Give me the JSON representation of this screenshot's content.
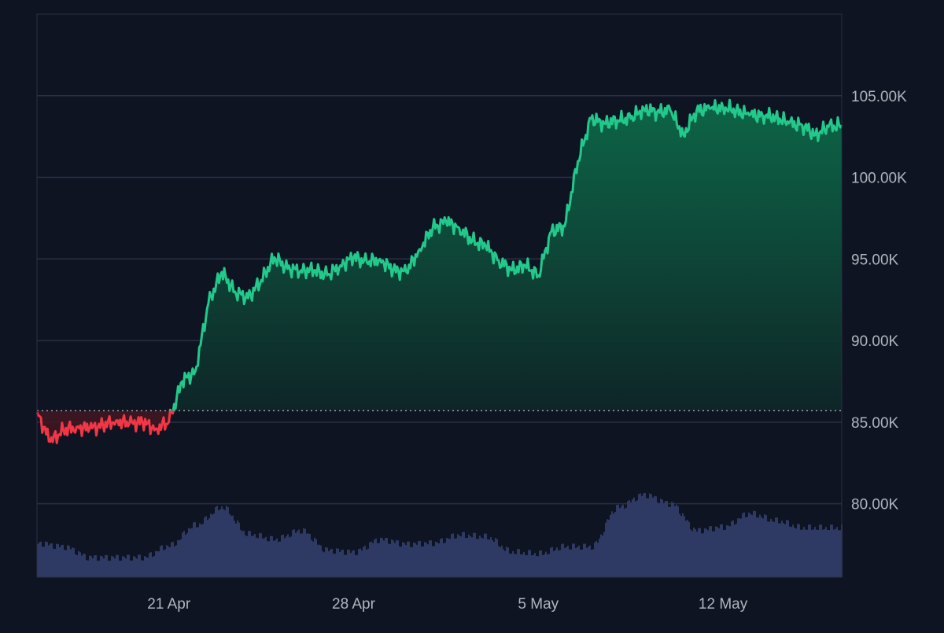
{
  "chart_data": {
    "type": "area",
    "title": "",
    "xlabel": "",
    "ylabel": "",
    "baseline": 85700,
    "ylim": [
      75500,
      110000
    ],
    "yticks": [
      80000,
      85000,
      90000,
      95000,
      100000,
      105000
    ],
    "ytick_labels": [
      "80.00K",
      "85.00K",
      "90.00K",
      "95.00K",
      "100.00K",
      "105.00K"
    ],
    "xlim": [
      "2025-04-16",
      "2025-05-16 12:00"
    ],
    "xticks": [
      "2025-04-21",
      "2025-04-28",
      "2025-05-05",
      "2025-05-12"
    ],
    "xtick_labels": [
      "21 Apr",
      "28 Apr",
      "5 May",
      "12 May"
    ],
    "grid": true,
    "colors": {
      "up": "#22c98a",
      "down": "#f23645",
      "volume": "#2e3a63",
      "grid": "#2b3142",
      "tick_text": "#b2b5be",
      "background": "#0e1422"
    },
    "price": {
      "x": [
        "2025-04-16 00:00",
        "2025-04-16 12:00",
        "2025-04-17 00:00",
        "2025-04-17 12:00",
        "2025-04-18 00:00",
        "2025-04-18 12:00",
        "2025-04-19 00:00",
        "2025-04-19 12:00",
        "2025-04-20 00:00",
        "2025-04-20 12:00",
        "2025-04-21 00:00",
        "2025-04-21 12:00",
        "2025-04-22 00:00",
        "2025-04-22 12:00",
        "2025-04-23 00:00",
        "2025-04-23 12:00",
        "2025-04-24 00:00",
        "2025-04-24 12:00",
        "2025-04-25 00:00",
        "2025-04-25 12:00",
        "2025-04-26 00:00",
        "2025-04-26 12:00",
        "2025-04-27 00:00",
        "2025-04-27 12:00",
        "2025-04-28 00:00",
        "2025-04-28 12:00",
        "2025-04-29 00:00",
        "2025-04-29 12:00",
        "2025-04-30 00:00",
        "2025-04-30 12:00",
        "2025-05-01 00:00",
        "2025-05-01 12:00",
        "2025-05-02 00:00",
        "2025-05-02 12:00",
        "2025-05-03 00:00",
        "2025-05-03 12:00",
        "2025-05-04 00:00",
        "2025-05-04 12:00",
        "2025-05-05 00:00",
        "2025-05-05 12:00",
        "2025-05-06 00:00",
        "2025-05-06 12:00",
        "2025-05-07 00:00",
        "2025-05-07 12:00",
        "2025-05-08 00:00",
        "2025-05-08 12:00",
        "2025-05-09 00:00",
        "2025-05-09 12:00",
        "2025-05-10 00:00",
        "2025-05-10 12:00",
        "2025-05-11 00:00",
        "2025-05-11 12:00",
        "2025-05-12 00:00",
        "2025-05-12 12:00",
        "2025-05-13 00:00",
        "2025-05-13 12:00",
        "2025-05-14 00:00",
        "2025-05-14 12:00",
        "2025-05-15 00:00",
        "2025-05-15 12:00",
        "2025-05-16 00:00",
        "2025-05-16 12:00"
      ],
      "close": [
        85600,
        83800,
        84500,
        84700,
        84600,
        84800,
        85100,
        84900,
        85000,
        84600,
        85000,
        87500,
        88100,
        92300,
        94200,
        93000,
        92600,
        93700,
        95100,
        94400,
        94300,
        94300,
        94000,
        94600,
        95100,
        94800,
        95000,
        94300,
        94200,
        95600,
        96900,
        97300,
        96900,
        96100,
        95800,
        94900,
        94300,
        94600,
        94000,
        96700,
        97000,
        101000,
        103600,
        103300,
        103500,
        103600,
        104200,
        104000,
        104100,
        102600,
        104100,
        104200,
        104300,
        104100,
        103800,
        103800,
        103700,
        103300,
        103200,
        102600,
        103100,
        103200
      ]
    },
    "volume": {
      "x": [
        "2025-04-16",
        "2025-04-17",
        "2025-04-18",
        "2025-04-19",
        "2025-04-20",
        "2025-04-21",
        "2025-04-22",
        "2025-04-23",
        "2025-04-24",
        "2025-04-25",
        "2025-04-26",
        "2025-04-27",
        "2025-04-28",
        "2025-04-29",
        "2025-04-30",
        "2025-05-01",
        "2025-05-02",
        "2025-05-03",
        "2025-05-04",
        "2025-05-05",
        "2025-05-06",
        "2025-05-07",
        "2025-05-08",
        "2025-05-09",
        "2025-05-10",
        "2025-05-11",
        "2025-05-12",
        "2025-05-13",
        "2025-05-14",
        "2025-05-15",
        "2025-05-16"
      ],
      "values": [
        0.38,
        0.34,
        0.22,
        0.22,
        0.22,
        0.35,
        0.58,
        0.78,
        0.48,
        0.42,
        0.52,
        0.3,
        0.28,
        0.42,
        0.37,
        0.38,
        0.47,
        0.45,
        0.28,
        0.26,
        0.34,
        0.34,
        0.78,
        0.92,
        0.82,
        0.52,
        0.56,
        0.71,
        0.63,
        0.55,
        0.55
      ]
    }
  }
}
